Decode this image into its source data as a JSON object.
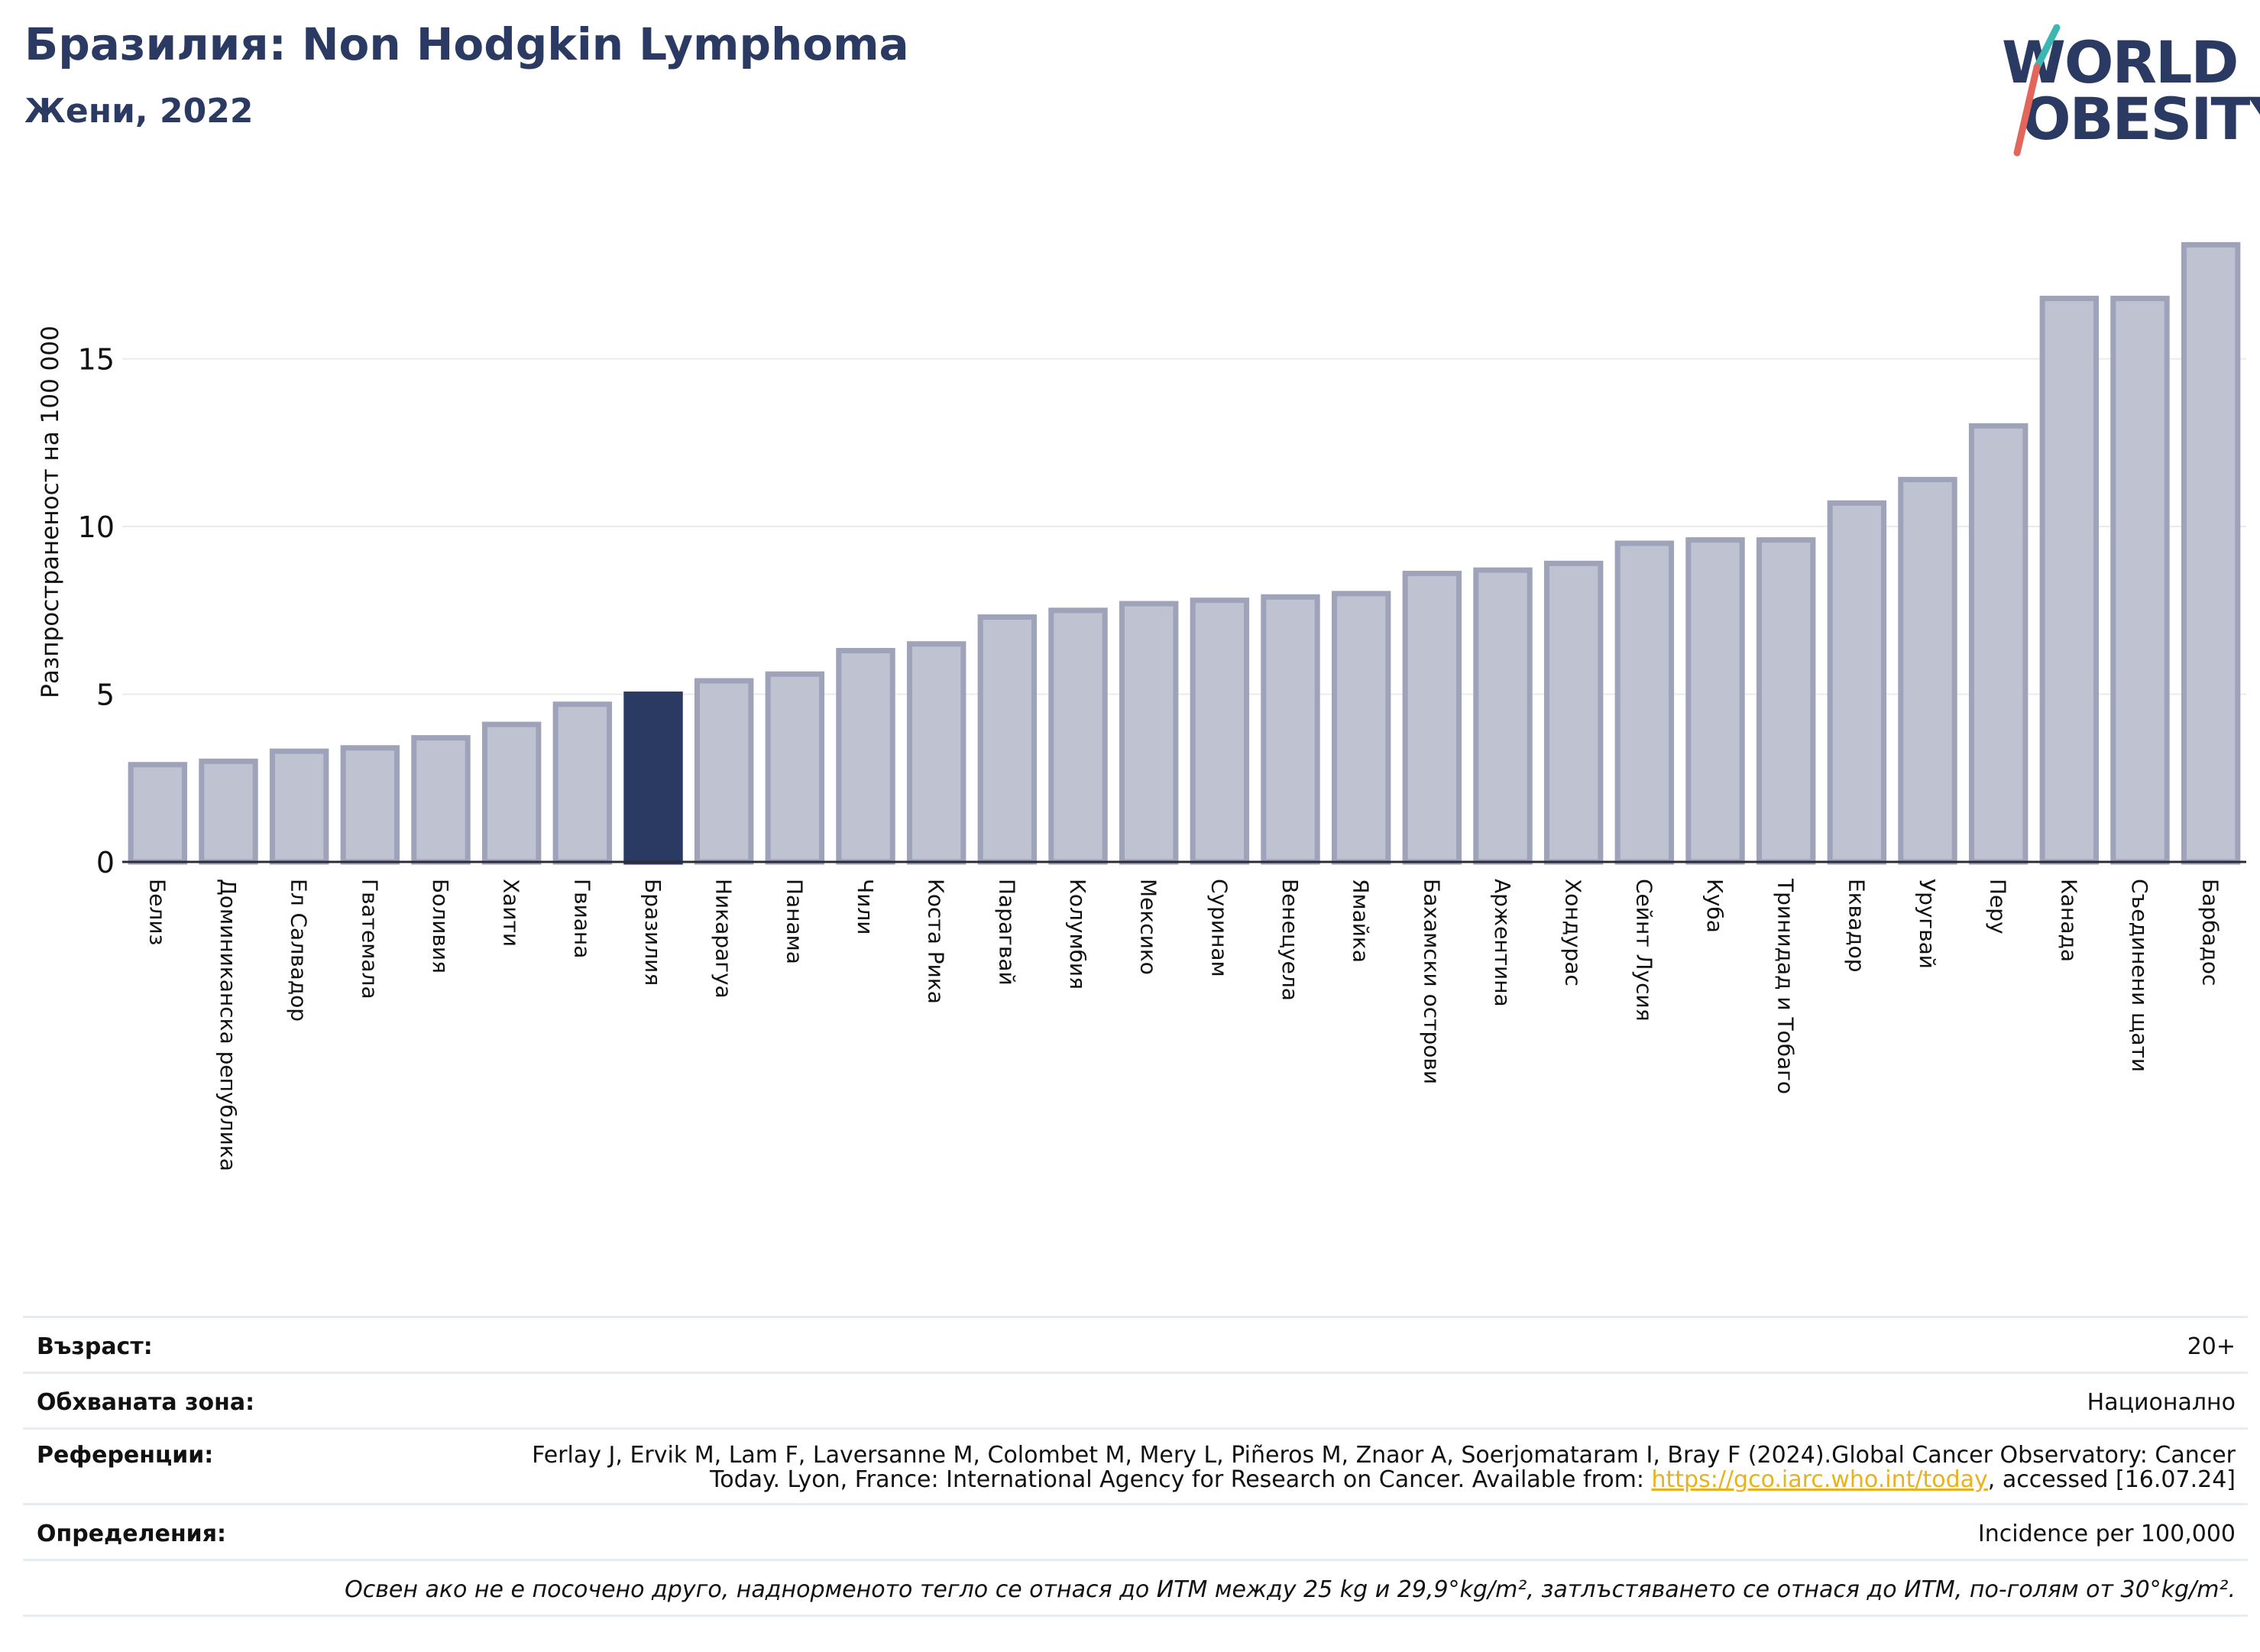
{
  "header": {
    "title": "Бразилия: Non Hodgkin Lymphoma",
    "subtitle": "Жени, 2022"
  },
  "logo": {
    "line1": "WORLD",
    "line2": "OBESITY",
    "colors": {
      "text": "#2b3a63",
      "slash_top": "#3bb6b0",
      "slash_bottom": "#e2665a"
    }
  },
  "chart_data": {
    "type": "bar",
    "ylabel": "Разпространеност  на 100 000",
    "ylim": [
      0,
      19
    ],
    "yticks": [
      0,
      5,
      10,
      15
    ],
    "grid": true,
    "highlight": "Бразилия",
    "colors": {
      "bar": "#bfc2d0",
      "bar_edge": "#9ea3ba",
      "highlight": "#2b3a63"
    },
    "categories": [
      "Белиз",
      "Доминиканска република",
      "Ел Салвадор",
      "Гватемала",
      "Боливия",
      "Хаити",
      "Гвиана",
      "Бразилия",
      "Никарагуа",
      "Панама",
      "Чили",
      "Коста Рика",
      "Парагвай",
      "Колумбия",
      "Мексико",
      "Суринам",
      "Венецуела",
      "Ямайка",
      "Бахамски острови",
      "Аржентина",
      "Хондурас",
      "Сейнт Лусия",
      "Куба",
      "Тринидад и Тобаго",
      "Еквадор",
      "Уругвай",
      "Перу",
      "Канада",
      "Съединени щати",
      "Барбадос"
    ],
    "values": [
      2.9,
      3.0,
      3.3,
      3.4,
      3.7,
      4.1,
      4.7,
      5.0,
      5.4,
      5.6,
      6.3,
      6.5,
      7.3,
      7.5,
      7.7,
      7.8,
      7.9,
      8.0,
      8.6,
      8.7,
      8.9,
      9.5,
      9.6,
      9.6,
      10.7,
      11.4,
      13.0,
      16.8,
      16.8,
      18.4
    ]
  },
  "info": {
    "age_label": "Възраст:",
    "age_value": "20+",
    "area_label": "Обхваната зона:",
    "area_value": "Национално",
    "refs_label": "Референции:",
    "refs_text_1": "Ferlay J, Ervik M, Lam F, Laversanne M, Colombet M, Mery L, Piñeros M, Znaor A, Soerjomataram I, Bray F (2024).Global Cancer Observatory: Cancer Today. Lyon, France: International Agency for Research on Cancer. Available from: ",
    "refs_link": "https://gco.iarc.who.int/today",
    "refs_text_2": ", accessed [16.07.24]",
    "defs_label": "Определения:",
    "defs_value": "Incidence per 100,000",
    "note": "Освен ако не е посочено друго, наднорменото тегло се отнася до ИТМ между 25 kg и 29,9°kg/m², затлъстяването се отнася до ИТМ, по-голям от 30°kg/m²."
  }
}
